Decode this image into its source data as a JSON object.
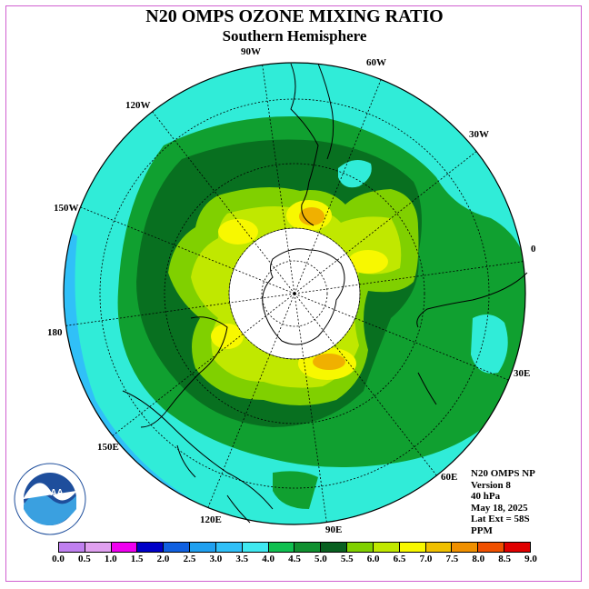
{
  "title": "N20 OMPS OZONE MIXING RATIO",
  "subtitle": "Southern Hemisphere",
  "longitude_labels": {
    "lon_90w": "90W",
    "lon_60w": "60W",
    "lon_30w": "30W",
    "lon_0": "0",
    "lon_30e": "30E",
    "lon_60e": "60E",
    "lon_90e": "90E",
    "lon_120e": "120E",
    "lon_150e": "150E",
    "lon_180": "180",
    "lon_150w": "150W",
    "lon_120w": "120W"
  },
  "info": {
    "product": "N20 OMPS NP",
    "version": "Version 8",
    "level": "40 hPa",
    "date": "May 18, 2025",
    "lat_ext": "Lat Ext = 58S",
    "units": "PPM"
  },
  "logo_text": "NOAA",
  "colorbar": {
    "ticks": [
      "0.0",
      "0.5",
      "1.0",
      "1.5",
      "2.0",
      "2.5",
      "3.0",
      "3.5",
      "4.0",
      "4.5",
      "5.0",
      "5.5",
      "6.0",
      "6.5",
      "7.0",
      "7.5",
      "8.0",
      "8.5",
      "9.0"
    ],
    "colors": [
      "#c080f0",
      "#e0a0f0",
      "#f000f0",
      "#0000c8",
      "#1060e0",
      "#20a0f0",
      "#30c0f8",
      "#40e8f0",
      "#10c050",
      "#109030",
      "#086020",
      "#80d000",
      "#c0e800",
      "#f8f800",
      "#f0c000",
      "#f09000",
      "#f05000",
      "#e00000",
      "#805030"
    ]
  },
  "colors": {
    "cyan": "#30ecd8",
    "light_blue": "#30c0f8",
    "blue": "#20a0f0",
    "green": "#10a030",
    "dark_green": "#087020",
    "lime": "#80d000",
    "yellow_green": "#c0e800",
    "yellow": "#f8f800",
    "orange": "#f0b000"
  }
}
